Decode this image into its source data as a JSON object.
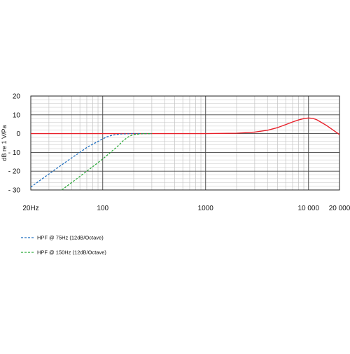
{
  "chart_data": {
    "type": "line",
    "title": "",
    "xlabel": "",
    "ylabel": "dB re 1 V/Pa",
    "x_scale": "log",
    "xlim": [
      20,
      20000
    ],
    "ylim": [
      -30,
      20
    ],
    "grid": true,
    "legend_position": "bottom-left",
    "x_ticks": [
      {
        "value": 20,
        "label": "20Hz"
      },
      {
        "value": 100,
        "label": "100"
      },
      {
        "value": 1000,
        "label": "1000"
      },
      {
        "value": 10000,
        "label": "10 000"
      },
      {
        "value": 20000,
        "label": "20 000"
      }
    ],
    "y_ticks": [
      {
        "value": 20,
        "label": "20"
      },
      {
        "value": 10,
        "label": "10"
      },
      {
        "value": 0,
        "label": "0"
      },
      {
        "value": -10,
        "label": "- 10"
      },
      {
        "value": -20,
        "label": "- 20"
      },
      {
        "value": -30,
        "label": "- 30"
      }
    ],
    "series": [
      {
        "name": "",
        "color": "#e8202a",
        "style": "solid",
        "x": [
          20,
          50,
          100,
          200,
          500,
          1000,
          2000,
          3000,
          4000,
          5000,
          6000,
          7000,
          8000,
          9000,
          10000,
          11000,
          12000,
          13000,
          15000,
          17000,
          20000
        ],
        "y": [
          0,
          0,
          0,
          0,
          0,
          0,
          0.2,
          0.8,
          1.8,
          3.2,
          4.8,
          6.2,
          7.3,
          8.0,
          8.3,
          8.1,
          7.4,
          6.3,
          4.3,
          2.2,
          -0.5
        ]
      },
      {
        "name": "HPF @ 75Hz (12dB/Octave)",
        "color": "#1f6fc0",
        "style": "dashed",
        "x": [
          20,
          25,
          30,
          40,
          50,
          60,
          70,
          80,
          90,
          100,
          110,
          125,
          150,
          200,
          300
        ],
        "y": [
          -28.5,
          -24.6,
          -21.5,
          -16.6,
          -12.9,
          -10.0,
          -7.4,
          -5.6,
          -4.2,
          -2.8,
          -1.7,
          -0.8,
          -0.2,
          0,
          0
        ]
      },
      {
        "name": "HPF @ 150Hz (12dB/Octave)",
        "color": "#2eaa3c",
        "style": "dashed",
        "x": [
          40,
          50,
          60,
          70,
          80,
          100,
          120,
          140,
          160,
          180,
          200,
          250,
          300
        ],
        "y": [
          -30,
          -26.0,
          -22.8,
          -20.0,
          -17.6,
          -13.5,
          -9.8,
          -6.7,
          -3.5,
          -1.5,
          -0.5,
          0,
          0
        ]
      }
    ]
  }
}
